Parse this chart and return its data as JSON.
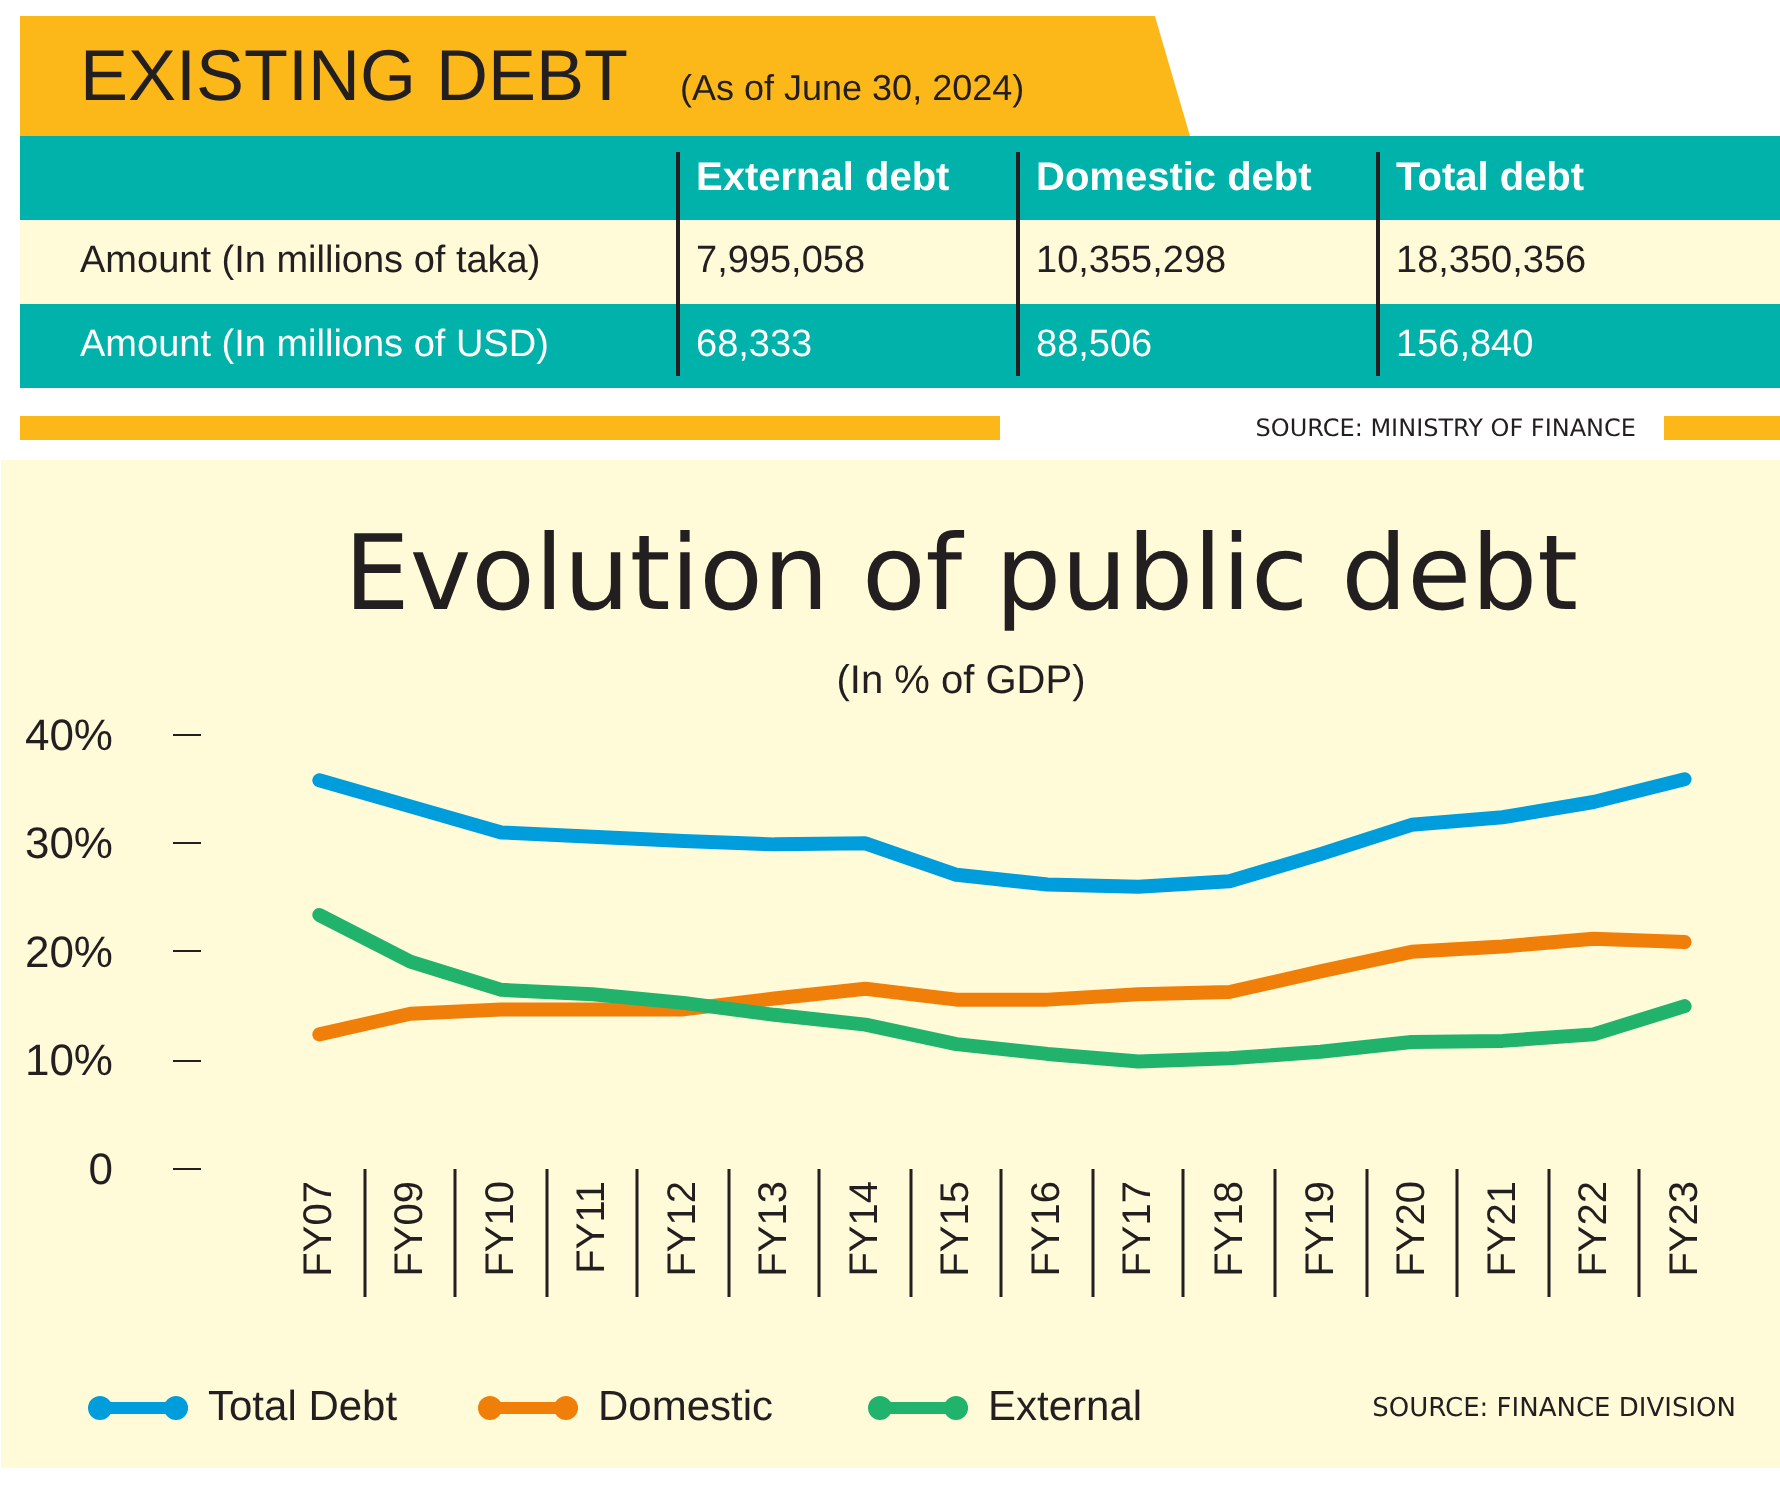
{
  "chart_data": [
    {
      "type": "other",
      "title": "EXISTING DEBT",
      "subtitle": "(As of June 30, 2024)",
      "categories": [
        "External debt",
        "Domestic debt",
        "Total debt"
      ],
      "series": [
        {
          "name": "Amount (In millions of taka)",
          "color": "#fffbd9",
          "values": [
            7995058,
            10355298,
            18350356
          ],
          "value_labels": [
            "7,995,058",
            "10,355,298",
            "18,350,356"
          ]
        },
        {
          "name": "Amount (In millions of USD)",
          "color": "#00b2a9",
          "values": [
            68333,
            88506,
            156840
          ],
          "value_labels": [
            "68,333",
            "88,506",
            "156,840"
          ]
        }
      ],
      "data_labels": true,
      "annotations": [
        "SOURCE: MINISTRY OF FINANCE"
      ]
    },
    {
      "type": "line",
      "title": "Evolution of public debt",
      "subtitle": "(In % of GDP)",
      "categories": [
        "FY07",
        "FY09",
        "FY10",
        "FY11",
        "FY12",
        "FY13",
        "FY14",
        "FY15",
        "FY16",
        "FY17",
        "FY18",
        "FY19",
        "FY20",
        "FY21",
        "FY22",
        "FY23"
      ],
      "series": [
        {
          "name": "Total Debt",
          "color": "#009ddc",
          "values": [
            35.8,
            33.4,
            31.0,
            30.6,
            30.2,
            29.9,
            30.0,
            27.1,
            26.2,
            26.0,
            26.5,
            29.0,
            31.7,
            32.4,
            33.8,
            35.9
          ]
        },
        {
          "name": "Domestic",
          "color": "#f07f09",
          "values": [
            12.4,
            14.3,
            14.7,
            14.7,
            14.7,
            15.7,
            16.6,
            15.6,
            15.6,
            16.1,
            16.3,
            18.2,
            20.0,
            20.5,
            21.2,
            20.9
          ]
        },
        {
          "name": "External",
          "color": "#21b36b",
          "values": [
            23.4,
            19.1,
            16.5,
            16.1,
            15.3,
            14.2,
            13.3,
            11.5,
            10.6,
            9.9,
            10.2,
            10.8,
            11.7,
            11.8,
            12.4,
            15.0
          ]
        }
      ],
      "ylim": [
        0,
        42
      ],
      "yticks": [
        0,
        {
          "value": 10,
          "label": "10%"
        },
        {
          "value": 20,
          "label": "20%"
        },
        {
          "value": 30,
          "label": "30%"
        },
        {
          "value": 40,
          "label": "40%"
        }
      ],
      "grid": false,
      "legend": "bottom",
      "marker": "none",
      "line_style": "solid",
      "annotations": [
        "SOURCE: FINANCE DIVISION"
      ]
    }
  ]
}
